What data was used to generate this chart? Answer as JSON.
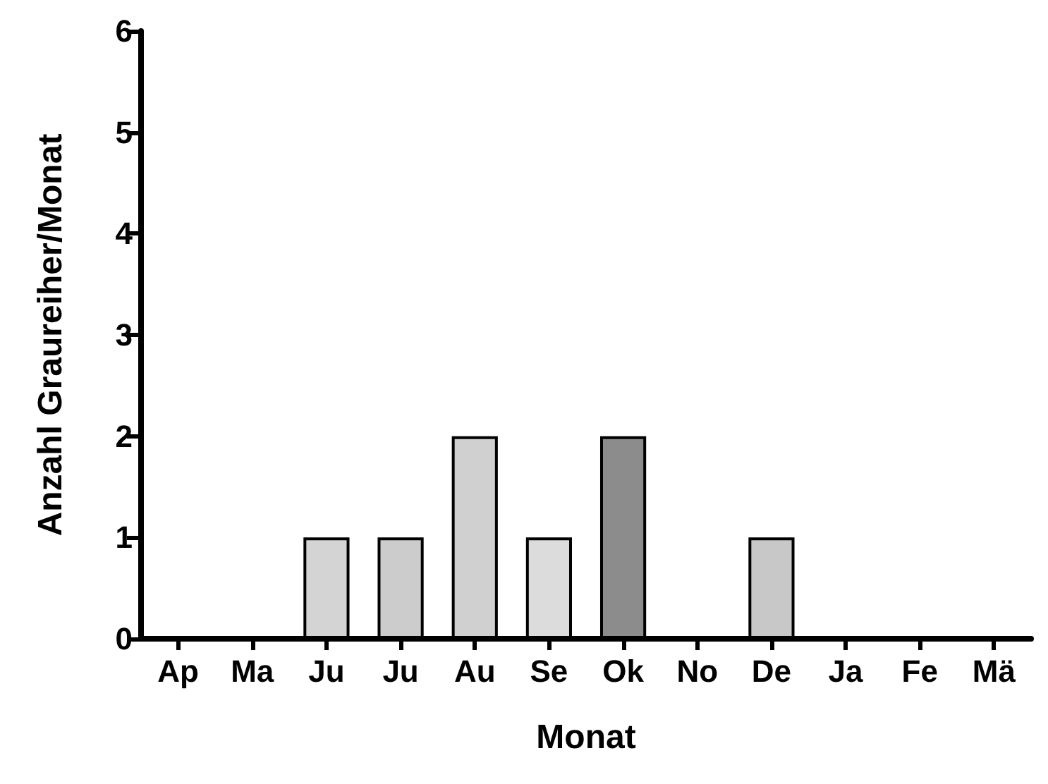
{
  "chart_data": {
    "type": "bar",
    "xlabel": "Monat",
    "ylabel": "Anzahl Graureiher/Monat",
    "categories": [
      "Ap",
      "Ma",
      "Ju",
      "Ju",
      "Au",
      "Se",
      "Ok",
      "No",
      "De",
      "Ja",
      "Fe",
      "Mä"
    ],
    "values": [
      0,
      0,
      1,
      1,
      2,
      1,
      2,
      0,
      1,
      0,
      0,
      0
    ],
    "colors": [
      "#d0d0d0",
      "#d0d0d0",
      "#d4d4d4",
      "#cccccc",
      "#d0d0d0",
      "#dcdcdc",
      "#8c8c8c",
      "#d0d0d0",
      "#c8c8c8",
      "#d0d0d0",
      "#d0d0d0",
      "#d0d0d0"
    ],
    "ylim": [
      0,
      6
    ],
    "yticks": [
      0,
      1,
      2,
      3,
      4,
      5,
      6
    ],
    "grid": false
  }
}
